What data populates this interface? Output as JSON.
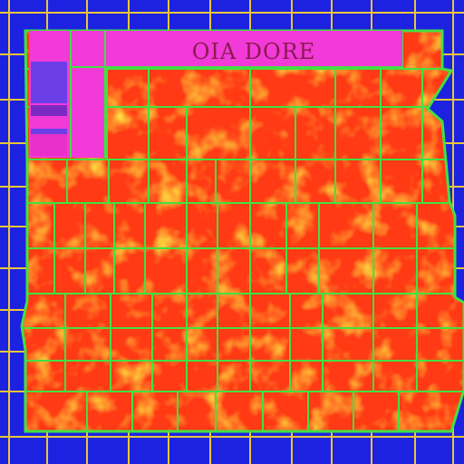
{
  "map": {
    "title": "OIA DORE",
    "colors": {
      "background": "#1d22e0",
      "outer_grid": "#e8c53a",
      "county_lines": "#43e043",
      "fill_base": "#ff3a14",
      "fill_hot": "#ffb000",
      "fill_mid": "#ff7a10",
      "legend_panel": "#f23ad8",
      "legend_violet": "#6b3ee8",
      "legend_purple": "#7a2ac0",
      "text": "#8a1a50"
    },
    "legend": {
      "swatches": [
        "#6b3ee8",
        "#7a2ac0",
        "#f23ad8",
        "#6b3ee8",
        "#e830c8"
      ]
    }
  }
}
